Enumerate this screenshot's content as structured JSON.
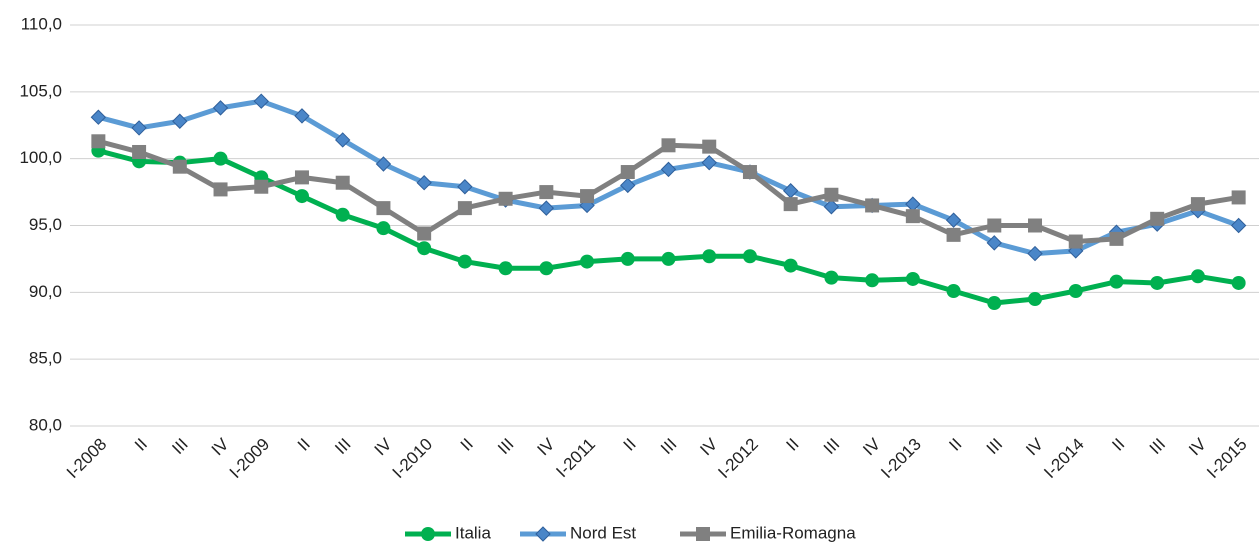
{
  "chart_data": {
    "type": "line",
    "categories": [
      "I-2008",
      "II",
      "III",
      "IV",
      "I-2009",
      "II",
      "III",
      "IV",
      "I-2010",
      "II",
      "III",
      "IV",
      "I-2011",
      "II",
      "III",
      "IV",
      "I-2012",
      "II",
      "III",
      "IV",
      "I-2013",
      "II",
      "III",
      "IV",
      "I-2014",
      "II",
      "III",
      "IV",
      "I-2015"
    ],
    "series": [
      {
        "name": "Italia",
        "color": "#00b050",
        "marker": "circle",
        "values": [
          100.6,
          99.8,
          99.7,
          100.0,
          98.6,
          97.2,
          95.8,
          94.8,
          93.3,
          92.3,
          91.8,
          91.8,
          92.3,
          92.5,
          92.5,
          92.7,
          92.7,
          92.0,
          91.1,
          90.9,
          91.0,
          90.1,
          89.2,
          89.5,
          90.1,
          90.8,
          90.7,
          91.2,
          90.7
        ]
      },
      {
        "name": "Nord Est",
        "color": "#5b9bd5",
        "marker": "diamond",
        "values": [
          103.1,
          102.3,
          102.8,
          103.8,
          104.3,
          103.2,
          101.4,
          99.6,
          98.2,
          97.9,
          96.9,
          96.3,
          96.5,
          98.0,
          99.2,
          99.7,
          99.0,
          97.6,
          96.4,
          96.5,
          96.6,
          95.4,
          93.7,
          92.9,
          93.1,
          94.5,
          95.1,
          96.1,
          95.0
        ]
      },
      {
        "name": "Emilia-Romagna",
        "color": "#808080",
        "marker": "square",
        "values": [
          101.3,
          100.5,
          99.4,
          97.7,
          97.9,
          98.6,
          98.2,
          96.3,
          94.4,
          96.3,
          97.0,
          97.5,
          97.2,
          99.0,
          101.0,
          100.9,
          99.0,
          96.6,
          97.3,
          96.5,
          95.7,
          94.3,
          95.0,
          95.0,
          93.8,
          94.0,
          95.5,
          96.6,
          97.1
        ]
      }
    ],
    "ylim": [
      80,
      110
    ],
    "yticks": [
      {
        "value": 80,
        "label": "80,0"
      },
      {
        "value": 85,
        "label": "85,0"
      },
      {
        "value": 90,
        "label": "90,0"
      },
      {
        "value": 95,
        "label": "95,0"
      },
      {
        "value": 100,
        "label": "100,0"
      },
      {
        "value": 105,
        "label": "105,0"
      },
      {
        "value": 110,
        "label": "110,0"
      }
    ],
    "grid": true,
    "legend": "bottom"
  }
}
